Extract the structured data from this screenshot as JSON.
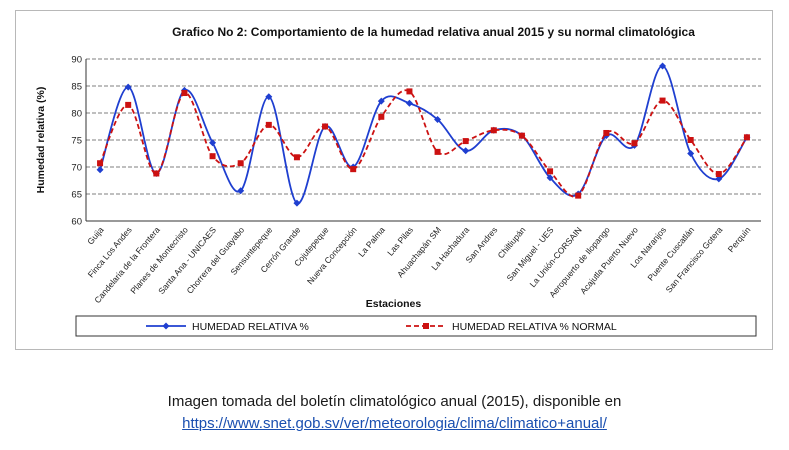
{
  "chart_data": {
    "type": "line",
    "title": "Grafico No 2: Comportamiento de la humedad relativa anual 2015 y su normal climatológica",
    "xlabel": "Estaciones",
    "ylabel": "Humedad relativa (%)",
    "ylim": [
      60,
      90
    ],
    "yticks": [
      60,
      65,
      70,
      75,
      80,
      85,
      90
    ],
    "grid": true,
    "legend_position": "bottom",
    "categories": [
      "Guija",
      "Finca Los Andes",
      "Candelaria de la Frontera",
      "Planes de Montecristo",
      "Santa Ana - UNICAES",
      "Chorrera del Guayabo",
      "Sensuntepeque",
      "Cerrón Grande",
      "Cojutepeque",
      "Nueva Concepción",
      "La Palma",
      "Las Pilas",
      "Ahuachapán SM",
      "La Hachadura",
      "San Andres",
      "Chiltiupán",
      "San Miguel - UES",
      "La Unión-CORSAIN",
      "Aeropuerto de Ilopango",
      "Acajutla Puerto Nuevo",
      "Los Naranjos",
      "Puente Cuscatlán",
      "San Francisco Gotera",
      "Perquín"
    ],
    "series": [
      {
        "name": "HUMEDAD RELATIVA %",
        "color": "#1f3fd0",
        "style": "solid",
        "marker": "diamond",
        "values": [
          69.5,
          84.8,
          68.8,
          84.2,
          74.5,
          65.6,
          83.0,
          63.3,
          77.5,
          70.0,
          82.2,
          81.8,
          78.8,
          73.0,
          76.8,
          75.8,
          68.0,
          65.0,
          75.8,
          74.0,
          88.7,
          72.5,
          67.8,
          75.5
        ]
      },
      {
        "name": "HUMEDAD RELATIVA % NORMAL",
        "color": "#cc1111",
        "style": "dashed",
        "marker": "square",
        "values": [
          70.7,
          81.5,
          68.8,
          83.7,
          72.0,
          70.7,
          77.8,
          71.8,
          77.5,
          69.6,
          79.3,
          84.0,
          72.8,
          74.8,
          76.8,
          75.8,
          69.2,
          64.7,
          76.3,
          74.4,
          82.3,
          75.0,
          68.7,
          75.5
        ]
      }
    ]
  },
  "caption": {
    "line1": "Imagen tomada del boletín climatológico anual (2015), disponible en",
    "link": "https://www.snet.gob.sv/ver/meteorologia/clima/climatico+anual/"
  }
}
